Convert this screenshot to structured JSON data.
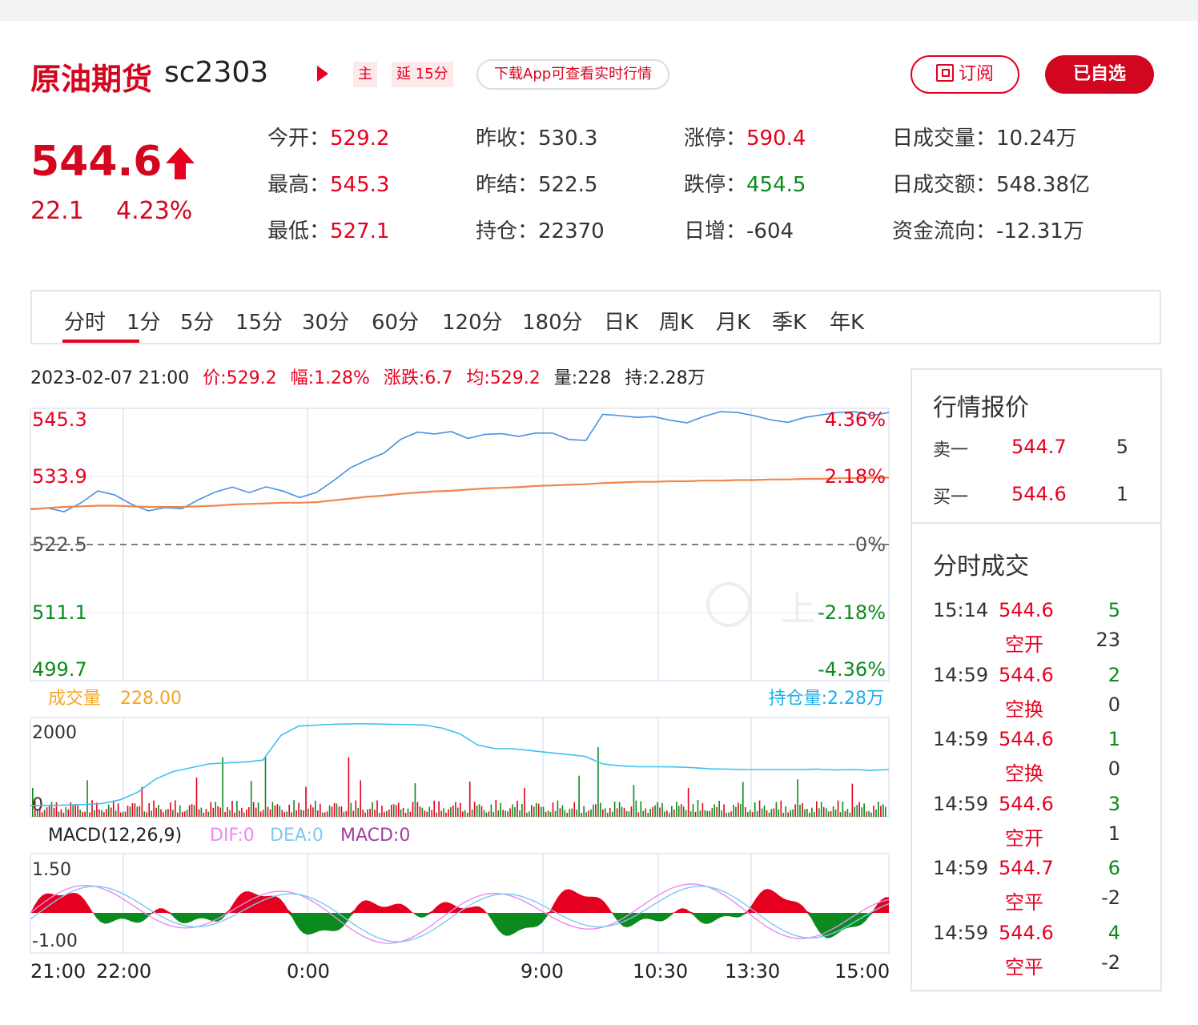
{
  "header": {
    "name": "原油期货",
    "code": "sc2303",
    "tag_main": "主",
    "tag_delay": "延 15分",
    "app_pill": "下载App可查看实时行情",
    "subscribe_label": "订阅",
    "selected_label": "已自选"
  },
  "quote": {
    "price": "544.6",
    "change": "22.1",
    "change_pct": "4.23%"
  },
  "stats": [
    {
      "label": "今开：",
      "value": "529.2",
      "color": "red"
    },
    {
      "label": "昨收：",
      "value": "530.3",
      "color": "gray"
    },
    {
      "label": "涨停：",
      "value": "590.4",
      "color": "red"
    },
    {
      "label": "日成交量：",
      "value": "10.24万",
      "color": "gray"
    },
    {
      "label": "最高：",
      "value": "545.3",
      "color": "red"
    },
    {
      "label": "昨结：",
      "value": "522.5",
      "color": "gray"
    },
    {
      "label": "跌停：",
      "value": "454.5",
      "color": "green"
    },
    {
      "label": "日成交额：",
      "value": "548.38亿",
      "color": "gray"
    },
    {
      "label": "最低：",
      "value": "527.1",
      "color": "red"
    },
    {
      "label": "持仓：",
      "value": "22370",
      "color": "gray"
    },
    {
      "label": "日增：",
      "value": "-604",
      "color": "gray"
    },
    {
      "label": "资金流向：",
      "value": "-12.31万",
      "color": "gray"
    }
  ],
  "tabs": [
    "分时",
    "1分",
    "5分",
    "15分",
    "30分",
    "60分",
    "120分",
    "180分",
    "日K",
    "周K",
    "月K",
    "季K",
    "年K"
  ],
  "infoline": {
    "time": "2023-02-07 21:00",
    "price": "价:529.2",
    "amp": "幅:1.28%",
    "chg": "涨跌:6.7",
    "avg": "均:529.2",
    "vol": "量:228",
    "oi": "持:2.28万"
  },
  "chart_data": [
    {
      "type": "line",
      "panel": "price",
      "title": "",
      "x_ticks": [
        "21:00",
        "22:00",
        "0:00",
        "9:00",
        "10:30",
        "13:30",
        "15:00"
      ],
      "y_ticks_left": [
        "545.3",
        "533.9",
        "522.5",
        "511.1",
        "499.7"
      ],
      "y_ticks_right": [
        "4.36%",
        "2.18%",
        "0%",
        "-2.18%",
        "-4.36%"
      ],
      "ylim": [
        499.7,
        545.3
      ],
      "baseline": 522.5,
      "series": [
        {
          "name": "",
          "color": "#4a90e2",
          "values": [
            528.5,
            528.9,
            528.3,
            529.5,
            531.2,
            530.5,
            529.2,
            528.4,
            529.0,
            528.6,
            529.8,
            531.0,
            532.0,
            531.4,
            532.5,
            531.6,
            530.2,
            530.9,
            533.0,
            535.5,
            537.0,
            538.0,
            540.0,
            541.0,
            540.8,
            541.5,
            540.6,
            541.2,
            541.0,
            540.3,
            540.9,
            541.2,
            540.4,
            540.2,
            544.3,
            543.8,
            543.5,
            543.9,
            543.6,
            543.2,
            544.0,
            544.5,
            544.3,
            544.0,
            543.6,
            543.3,
            543.9,
            544.0,
            544.3,
            544.6,
            544.3,
            544.6
          ]
        },
        {
          "name": "",
          "color": "#f0874a",
          "values": [
            528.4,
            528.6,
            528.8,
            528.9,
            529.0,
            529.0,
            528.9,
            528.8,
            528.8,
            528.8,
            528.9,
            529.0,
            529.2,
            529.3,
            529.4,
            529.5,
            529.5,
            529.6,
            529.9,
            530.2,
            530.5,
            530.7,
            531.0,
            531.2,
            531.4,
            531.5,
            531.7,
            531.9,
            532.0,
            532.1,
            532.3,
            532.4,
            532.5,
            532.6,
            532.8,
            532.9,
            533.0,
            533.0,
            533.1,
            533.1,
            533.2,
            533.2,
            533.3,
            533.3,
            533.4,
            533.4,
            533.5,
            533.5,
            533.6,
            533.6,
            533.7,
            533.7
          ]
        }
      ]
    },
    {
      "type": "bar",
      "panel": "volume",
      "title": "成交量",
      "volume_value": "228.00",
      "oi_label": "持仓量:2.28万",
      "y_ticks": [
        "2000",
        "0"
      ],
      "ylim": [
        0,
        2000
      ]
    },
    {
      "type": "bar",
      "panel": "macd",
      "title": "MACD(12,26,9)",
      "dif": "DIF:0",
      "dea": "DEA:0",
      "macd": "MACD:0",
      "y_ticks": [
        "1.50",
        "-1.00"
      ],
      "ylim": [
        -1.0,
        1.5
      ]
    }
  ],
  "quote_panel": {
    "title": "行情报价",
    "rows": [
      {
        "label": "卖一",
        "price": "544.7",
        "qty": "5"
      },
      {
        "label": "买一",
        "price": "544.6",
        "qty": "1"
      }
    ]
  },
  "trades_panel": {
    "title": "分时成交",
    "rows": [
      {
        "time": "15:14",
        "price": "544.6",
        "qty": "5",
        "type": "空开",
        "delta": "23"
      },
      {
        "time": "14:59",
        "price": "544.6",
        "qty": "2",
        "type": "空换",
        "delta": "0"
      },
      {
        "time": "14:59",
        "price": "544.6",
        "qty": "1",
        "type": "空换",
        "delta": "0"
      },
      {
        "time": "14:59",
        "price": "544.6",
        "qty": "3",
        "type": "空开",
        "delta": "1"
      },
      {
        "time": "14:59",
        "price": "544.7",
        "qty": "6",
        "type": "空平",
        "delta": "-2"
      },
      {
        "time": "14:59",
        "price": "544.6",
        "qty": "4",
        "type": "空平",
        "delta": "-2"
      }
    ]
  },
  "watermark": "上"
}
